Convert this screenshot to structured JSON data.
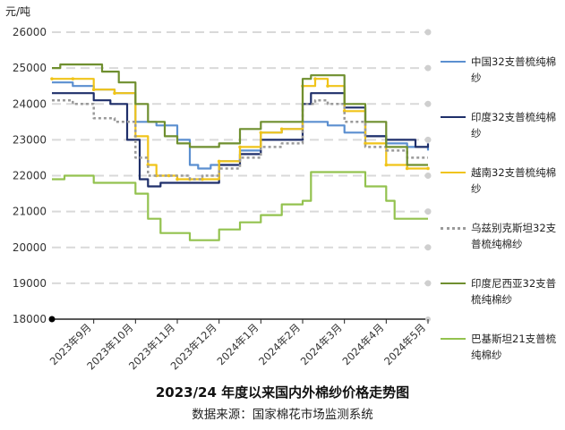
{
  "chart_data": {
    "type": "line",
    "title": "2023/24 年度以来国内外棉纱价格走势图",
    "source": "数据来源：国家棉花市场监测系统",
    "ylabel": "元/吨",
    "ylim": [
      18000,
      26000
    ],
    "yticks": [
      "26000",
      "25000",
      "24000",
      "23000",
      "22000",
      "21000",
      "20000",
      "19000",
      "18000"
    ],
    "x_categories": [
      "2023年9月",
      "2023年10月",
      "2023年11月",
      "2023年12月",
      "2024年1月",
      "2024年2月",
      "2024年3月",
      "2024年4月",
      "2024年5月"
    ],
    "grid": "horizontal-dashed",
    "legend_position": "right",
    "series": [
      {
        "name": "中国32支普梳纯棉纱",
        "color": "#5b8fd0",
        "dash": "",
        "points": [
          [
            0.0,
            24600
          ],
          [
            0.5,
            24500
          ],
          [
            1.0,
            24400
          ],
          [
            1.5,
            24300
          ],
          [
            2.0,
            23500
          ],
          [
            2.5,
            23400
          ],
          [
            3.0,
            23000
          ],
          [
            3.3,
            22300
          ],
          [
            3.5,
            22200
          ],
          [
            3.8,
            22300
          ],
          [
            4.0,
            22400
          ],
          [
            4.5,
            22700
          ],
          [
            5.0,
            23200
          ],
          [
            5.5,
            23300
          ],
          [
            6.0,
            23500
          ],
          [
            6.3,
            23500
          ],
          [
            6.6,
            23400
          ],
          [
            7.0,
            23200
          ],
          [
            7.5,
            23100
          ],
          [
            8.0,
            22900
          ],
          [
            8.5,
            22800
          ],
          [
            9.0,
            22700
          ]
        ]
      },
      {
        "name": "印度32支普梳纯棉纱",
        "color": "#1f2f6a",
        "dash": "",
        "points": [
          [
            0.0,
            24300
          ],
          [
            0.5,
            24300
          ],
          [
            1.0,
            24100
          ],
          [
            1.4,
            24000
          ],
          [
            1.8,
            23000
          ],
          [
            2.1,
            21900
          ],
          [
            2.3,
            21700
          ],
          [
            2.6,
            21800
          ],
          [
            3.0,
            21800
          ],
          [
            3.3,
            21800
          ],
          [
            3.6,
            21800
          ],
          [
            4.0,
            22300
          ],
          [
            4.5,
            22600
          ],
          [
            5.0,
            23000
          ],
          [
            5.4,
            23000
          ],
          [
            5.7,
            23000
          ],
          [
            6.0,
            24000
          ],
          [
            6.2,
            24300
          ],
          [
            6.5,
            24300
          ],
          [
            7.0,
            23900
          ],
          [
            7.5,
            23100
          ],
          [
            8.0,
            23000
          ],
          [
            8.4,
            23000
          ],
          [
            8.7,
            22800
          ],
          [
            9.0,
            22900
          ]
        ]
      },
      {
        "name": "越南32支普梳纯棉纱",
        "color": "#f0c419",
        "dash": "",
        "points": [
          [
            0.0,
            24700
          ],
          [
            0.5,
            24700
          ],
          [
            1.0,
            24400
          ],
          [
            1.5,
            24300
          ],
          [
            2.0,
            23100
          ],
          [
            2.3,
            22300
          ],
          [
            2.5,
            22000
          ],
          [
            2.8,
            22000
          ],
          [
            3.0,
            21900
          ],
          [
            3.3,
            21900
          ],
          [
            3.6,
            21900
          ],
          [
            4.0,
            22400
          ],
          [
            4.5,
            22800
          ],
          [
            5.0,
            23200
          ],
          [
            5.5,
            23300
          ],
          [
            6.0,
            24500
          ],
          [
            6.3,
            24700
          ],
          [
            6.6,
            24500
          ],
          [
            7.0,
            23800
          ],
          [
            7.5,
            22900
          ],
          [
            8.0,
            22300
          ],
          [
            8.5,
            22200
          ],
          [
            9.0,
            22200
          ]
        ]
      },
      {
        "name": "乌兹别克斯坦32支普梳纯棉纱",
        "color": "#9a9a9a",
        "dash": "3,3",
        "points": [
          [
            0.0,
            24100
          ],
          [
            0.5,
            24000
          ],
          [
            1.0,
            23600
          ],
          [
            1.5,
            23500
          ],
          [
            2.0,
            22500
          ],
          [
            2.3,
            22000
          ],
          [
            2.6,
            22000
          ],
          [
            3.0,
            22000
          ],
          [
            3.3,
            21900
          ],
          [
            3.6,
            22000
          ],
          [
            4.0,
            22200
          ],
          [
            4.5,
            22500
          ],
          [
            5.0,
            22800
          ],
          [
            5.5,
            22900
          ],
          [
            6.0,
            24000
          ],
          [
            6.3,
            24100
          ],
          [
            6.6,
            24000
          ],
          [
            7.0,
            23500
          ],
          [
            7.5,
            22800
          ],
          [
            8.0,
            22700
          ],
          [
            8.5,
            22500
          ],
          [
            9.0,
            22500
          ]
        ]
      },
      {
        "name": "印度尼西亚32支普梳纯棉纱",
        "color": "#6f8f2f",
        "dash": "",
        "points": [
          [
            0.0,
            25000
          ],
          [
            0.2,
            25100
          ],
          [
            0.7,
            25100
          ],
          [
            1.2,
            24900
          ],
          [
            1.6,
            24600
          ],
          [
            2.0,
            24000
          ],
          [
            2.3,
            23500
          ],
          [
            2.7,
            23100
          ],
          [
            3.0,
            22900
          ],
          [
            3.3,
            22800
          ],
          [
            3.7,
            22800
          ],
          [
            4.0,
            22900
          ],
          [
            4.5,
            23300
          ],
          [
            5.0,
            23500
          ],
          [
            5.5,
            23500
          ],
          [
            6.0,
            24700
          ],
          [
            6.2,
            24800
          ],
          [
            6.6,
            24800
          ],
          [
            7.0,
            24000
          ],
          [
            7.5,
            23500
          ],
          [
            8.0,
            22800
          ],
          [
            8.5,
            22300
          ],
          [
            9.0,
            22300
          ]
        ]
      },
      {
        "name": "巴基斯坦21支普梳纯棉纱",
        "color": "#93c24f",
        "dash": "",
        "points": [
          [
            0.0,
            21900
          ],
          [
            0.3,
            22000
          ],
          [
            0.6,
            22000
          ],
          [
            1.0,
            21800
          ],
          [
            1.5,
            21800
          ],
          [
            2.0,
            21500
          ],
          [
            2.3,
            20800
          ],
          [
            2.6,
            20400
          ],
          [
            3.0,
            20400
          ],
          [
            3.3,
            20200
          ],
          [
            3.6,
            20200
          ],
          [
            4.0,
            20500
          ],
          [
            4.5,
            20700
          ],
          [
            5.0,
            20900
          ],
          [
            5.5,
            21200
          ],
          [
            6.0,
            21300
          ],
          [
            6.2,
            22100
          ],
          [
            6.5,
            22100
          ],
          [
            7.0,
            22100
          ],
          [
            7.5,
            21700
          ],
          [
            8.0,
            21300
          ],
          [
            8.2,
            20800
          ],
          [
            8.6,
            20800
          ],
          [
            9.0,
            20800
          ]
        ]
      }
    ]
  }
}
